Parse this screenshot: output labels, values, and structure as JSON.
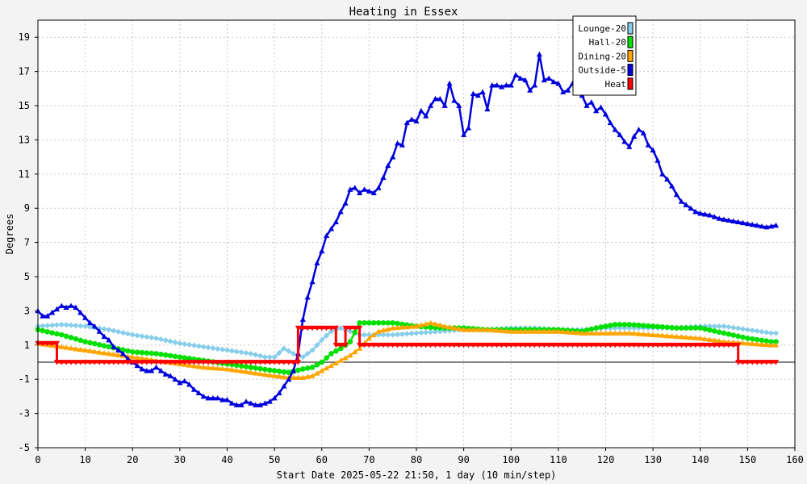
{
  "chart_data": {
    "type": "line",
    "title": "Heating in Essex",
    "xlabel": "Start Date 2025-05-22 21:50, 1 day (10 min/step)",
    "ylabel": "Degrees",
    "xlim": [
      0,
      160
    ],
    "ylim": [
      -5,
      20
    ],
    "xticks": [
      0,
      10,
      20,
      30,
      40,
      50,
      60,
      70,
      80,
      90,
      100,
      110,
      120,
      130,
      140,
      150,
      160
    ],
    "yticks": [
      -5,
      -3,
      -1,
      1,
      3,
      5,
      7,
      9,
      11,
      13,
      15,
      17,
      19
    ],
    "grid": true,
    "legend_position": "top-right",
    "series": [
      {
        "name": "Lounge-20",
        "color": "#87ceeb",
        "marker": "diamond",
        "points": [
          [
            0,
            2.1
          ],
          [
            5,
            2.2
          ],
          [
            10,
            2.1
          ],
          [
            15,
            1.9
          ],
          [
            20,
            1.6
          ],
          [
            25,
            1.4
          ],
          [
            30,
            1.1
          ],
          [
            35,
            0.9
          ],
          [
            40,
            0.7
          ],
          [
            45,
            0.5
          ],
          [
            48,
            0.3
          ],
          [
            50,
            0.3
          ],
          [
            52,
            0.8
          ],
          [
            54,
            0.5
          ],
          [
            56,
            0.3
          ],
          [
            58,
            0.7
          ],
          [
            60,
            1.3
          ],
          [
            62,
            1.8
          ],
          [
            64,
            2.0
          ],
          [
            66,
            1.8
          ],
          [
            68,
            1.6
          ],
          [
            70,
            1.6
          ],
          [
            75,
            1.6
          ],
          [
            80,
            1.7
          ],
          [
            85,
            1.8
          ],
          [
            90,
            1.9
          ],
          [
            95,
            1.9
          ],
          [
            100,
            2.0
          ],
          [
            105,
            2.0
          ],
          [
            110,
            1.9
          ],
          [
            115,
            1.9
          ],
          [
            120,
            2.0
          ],
          [
            125,
            2.0
          ],
          [
            130,
            2.0
          ],
          [
            135,
            2.0
          ],
          [
            140,
            2.1
          ],
          [
            145,
            2.1
          ],
          [
            150,
            1.9
          ],
          [
            155,
            1.7
          ],
          [
            156,
            1.7
          ]
        ]
      },
      {
        "name": "Hall-20",
        "color": "#00e000",
        "marker": "circle",
        "points": [
          [
            0,
            1.9
          ],
          [
            5,
            1.6
          ],
          [
            10,
            1.2
          ],
          [
            15,
            0.9
          ],
          [
            20,
            0.6
          ],
          [
            25,
            0.5
          ],
          [
            30,
            0.3
          ],
          [
            35,
            0.1
          ],
          [
            40,
            -0.1
          ],
          [
            45,
            -0.3
          ],
          [
            50,
            -0.5
          ],
          [
            53,
            -0.6
          ],
          [
            56,
            -0.4
          ],
          [
            58,
            -0.3
          ],
          [
            60,
            0
          ],
          [
            62,
            0.5
          ],
          [
            64,
            0.8
          ],
          [
            66,
            1.2
          ],
          [
            68,
            2.3
          ],
          [
            70,
            2.3
          ],
          [
            75,
            2.3
          ],
          [
            80,
            2.1
          ],
          [
            85,
            2.0
          ],
          [
            90,
            2.0
          ],
          [
            95,
            1.9
          ],
          [
            100,
            1.9
          ],
          [
            105,
            1.9
          ],
          [
            110,
            1.9
          ],
          [
            115,
            1.8
          ],
          [
            118,
            2.0
          ],
          [
            122,
            2.2
          ],
          [
            125,
            2.2
          ],
          [
            130,
            2.1
          ],
          [
            135,
            2.0
          ],
          [
            140,
            2.0
          ],
          [
            145,
            1.7
          ],
          [
            150,
            1.4
          ],
          [
            155,
            1.2
          ],
          [
            156,
            1.2
          ]
        ]
      },
      {
        "name": "Dining-20",
        "color": "#ffa500",
        "marker": "triangle-up",
        "points": [
          [
            0,
            1.1
          ],
          [
            5,
            0.9
          ],
          [
            10,
            0.7
          ],
          [
            15,
            0.5
          ],
          [
            20,
            0.3
          ],
          [
            25,
            0.1
          ],
          [
            30,
            -0.1
          ],
          [
            35,
            -0.3
          ],
          [
            40,
            -0.4
          ],
          [
            45,
            -0.6
          ],
          [
            50,
            -0.8
          ],
          [
            53,
            -0.9
          ],
          [
            56,
            -0.9
          ],
          [
            58,
            -0.8
          ],
          [
            60,
            -0.5
          ],
          [
            62,
            -0.2
          ],
          [
            64,
            0.1
          ],
          [
            66,
            0.4
          ],
          [
            68,
            0.8
          ],
          [
            70,
            1.4
          ],
          [
            72,
            1.8
          ],
          [
            75,
            2.0
          ],
          [
            80,
            2.1
          ],
          [
            83,
            2.3
          ],
          [
            86,
            2.1
          ],
          [
            90,
            1.9
          ],
          [
            95,
            1.9
          ],
          [
            100,
            1.8
          ],
          [
            105,
            1.8
          ],
          [
            110,
            1.8
          ],
          [
            115,
            1.7
          ],
          [
            120,
            1.7
          ],
          [
            125,
            1.7
          ],
          [
            130,
            1.6
          ],
          [
            135,
            1.5
          ],
          [
            140,
            1.4
          ],
          [
            145,
            1.2
          ],
          [
            150,
            1.1
          ],
          [
            155,
            1.0
          ],
          [
            156,
            1.0
          ]
        ]
      },
      {
        "name": "Outside-5",
        "color": "#0000dd",
        "marker": "triangle-up",
        "points": [
          [
            0,
            3.0
          ],
          [
            1,
            2.7
          ],
          [
            2,
            2.7
          ],
          [
            3,
            2.9
          ],
          [
            4,
            3.1
          ],
          [
            5,
            3.3
          ],
          [
            6,
            3.2
          ],
          [
            7,
            3.3
          ],
          [
            8,
            3.2
          ],
          [
            9,
            2.9
          ],
          [
            10,
            2.6
          ],
          [
            11,
            2.3
          ],
          [
            12,
            2.1
          ],
          [
            13,
            1.8
          ],
          [
            14,
            1.5
          ],
          [
            15,
            1.3
          ],
          [
            16,
            0.9
          ],
          [
            17,
            0.7
          ],
          [
            18,
            0.5
          ],
          [
            19,
            0.2
          ],
          [
            20,
            0.0
          ],
          [
            21,
            -0.2
          ],
          [
            22,
            -0.4
          ],
          [
            23,
            -0.5
          ],
          [
            24,
            -0.5
          ],
          [
            25,
            -0.3
          ],
          [
            26,
            -0.5
          ],
          [
            27,
            -0.7
          ],
          [
            28,
            -0.8
          ],
          [
            29,
            -1.0
          ],
          [
            30,
            -1.2
          ],
          [
            31,
            -1.1
          ],
          [
            32,
            -1.3
          ],
          [
            33,
            -1.6
          ],
          [
            34,
            -1.8
          ],
          [
            35,
            -2.0
          ],
          [
            36,
            -2.1
          ],
          [
            37,
            -2.1
          ],
          [
            38,
            -2.1
          ],
          [
            39,
            -2.2
          ],
          [
            40,
            -2.2
          ],
          [
            41,
            -2.4
          ],
          [
            42,
            -2.5
          ],
          [
            43,
            -2.5
          ],
          [
            44,
            -2.3
          ],
          [
            45,
            -2.4
          ],
          [
            46,
            -2.5
          ],
          [
            47,
            -2.5
          ],
          [
            48,
            -2.4
          ],
          [
            49,
            -2.3
          ],
          [
            50,
            -2.1
          ],
          [
            51,
            -1.8
          ],
          [
            52,
            -1.4
          ],
          [
            53,
            -1.0
          ],
          [
            54,
            -0.5
          ],
          [
            55,
            0.5
          ],
          [
            56,
            2.5
          ],
          [
            57,
            3.8
          ],
          [
            58,
            4.7
          ],
          [
            59,
            5.8
          ],
          [
            60,
            6.5
          ],
          [
            61,
            7.4
          ],
          [
            62,
            7.8
          ],
          [
            63,
            8.2
          ],
          [
            64,
            8.8
          ],
          [
            65,
            9.3
          ],
          [
            66,
            10.1
          ],
          [
            67,
            10.2
          ],
          [
            68,
            9.9
          ],
          [
            69,
            10.1
          ],
          [
            70,
            10.0
          ],
          [
            71,
            9.9
          ],
          [
            72,
            10.2
          ],
          [
            73,
            10.8
          ],
          [
            74,
            11.5
          ],
          [
            75,
            12.0
          ],
          [
            76,
            12.8
          ],
          [
            77,
            12.7
          ],
          [
            78,
            14.0
          ],
          [
            79,
            14.2
          ],
          [
            80,
            14.1
          ],
          [
            81,
            14.7
          ],
          [
            82,
            14.4
          ],
          [
            83,
            15.0
          ],
          [
            84,
            15.4
          ],
          [
            85,
            15.4
          ],
          [
            86,
            15.0
          ],
          [
            87,
            16.3
          ],
          [
            88,
            15.3
          ],
          [
            89,
            15.0
          ],
          [
            90,
            13.3
          ],
          [
            91,
            13.7
          ],
          [
            92,
            15.7
          ],
          [
            93,
            15.6
          ],
          [
            94,
            15.8
          ],
          [
            95,
            14.8
          ],
          [
            96,
            16.2
          ],
          [
            97,
            16.2
          ],
          [
            98,
            16.1
          ],
          [
            99,
            16.2
          ],
          [
            100,
            16.2
          ],
          [
            101,
            16.8
          ],
          [
            102,
            16.6
          ],
          [
            103,
            16.5
          ],
          [
            104,
            15.9
          ],
          [
            105,
            16.2
          ],
          [
            106,
            18.0
          ],
          [
            107,
            16.5
          ],
          [
            108,
            16.6
          ],
          [
            109,
            16.4
          ],
          [
            110,
            16.3
          ],
          [
            111,
            15.8
          ],
          [
            112,
            15.9
          ],
          [
            113,
            16.3
          ],
          [
            114,
            16.0
          ],
          [
            115,
            15.6
          ],
          [
            116,
            15.0
          ],
          [
            117,
            15.2
          ],
          [
            118,
            14.7
          ],
          [
            119,
            14.9
          ],
          [
            120,
            14.5
          ],
          [
            121,
            14.0
          ],
          [
            122,
            13.6
          ],
          [
            123,
            13.3
          ],
          [
            124,
            12.9
          ],
          [
            125,
            12.6
          ],
          [
            126,
            13.2
          ],
          [
            127,
            13.6
          ],
          [
            128,
            13.4
          ],
          [
            129,
            12.7
          ],
          [
            130,
            12.4
          ],
          [
            131,
            11.8
          ],
          [
            132,
            11.0
          ],
          [
            133,
            10.7
          ],
          [
            134,
            10.3
          ],
          [
            135,
            9.8
          ],
          [
            136,
            9.4
          ],
          [
            137,
            9.2
          ],
          [
            138,
            9.0
          ],
          [
            139,
            8.8
          ],
          [
            140,
            8.7
          ],
          [
            142,
            8.6
          ],
          [
            144,
            8.4
          ],
          [
            146,
            8.3
          ],
          [
            148,
            8.2
          ],
          [
            150,
            8.1
          ],
          [
            152,
            8.0
          ],
          [
            154,
            7.9
          ],
          [
            156,
            8.0
          ]
        ]
      },
      {
        "name": "Heat",
        "color": "#ff0000",
        "marker": "triangle-down",
        "points": [
          [
            0,
            1.1
          ],
          [
            4,
            1.1
          ],
          [
            4,
            0
          ],
          [
            55,
            0
          ],
          [
            55,
            2.0
          ],
          [
            63,
            2.0
          ],
          [
            63,
            1.0
          ],
          [
            65,
            1.0
          ],
          [
            65,
            2.0
          ],
          [
            68,
            2.0
          ],
          [
            68,
            1.0
          ],
          [
            148,
            1.0
          ],
          [
            148,
            0
          ],
          [
            156,
            0
          ]
        ]
      }
    ]
  }
}
